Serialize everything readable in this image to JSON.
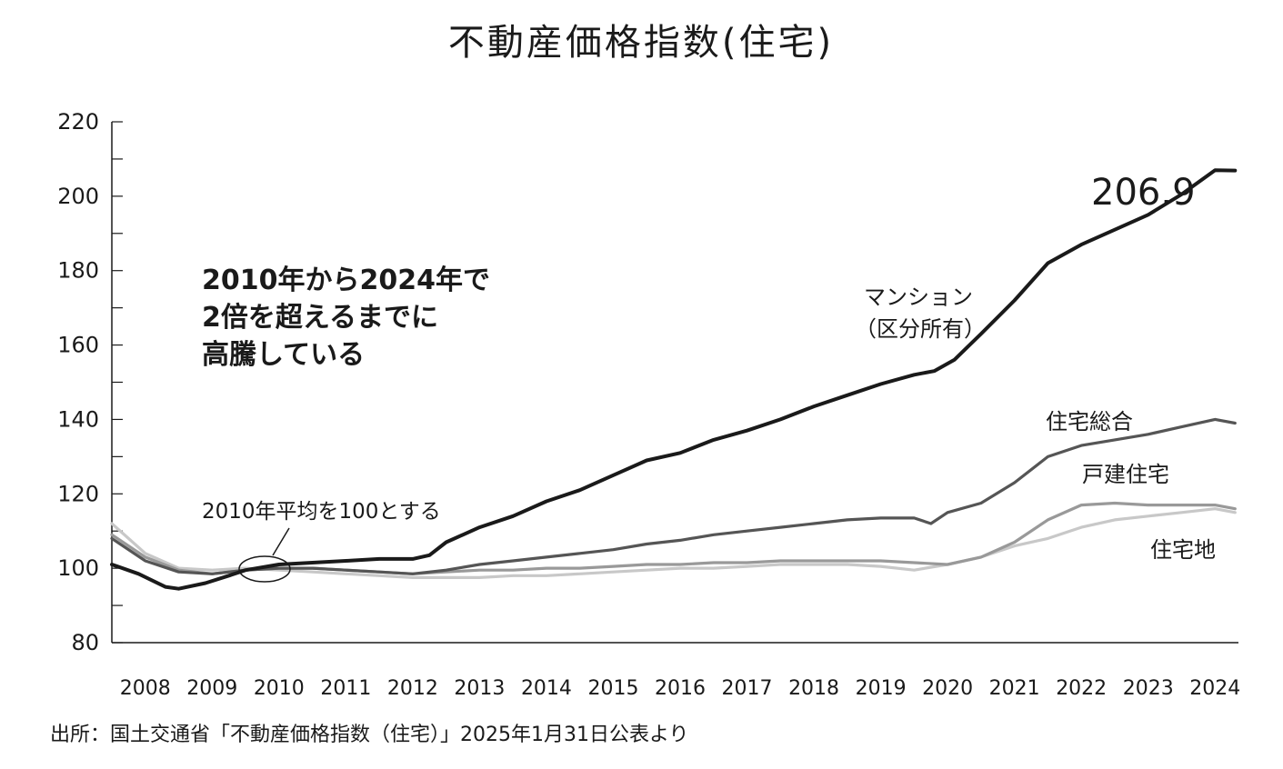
{
  "chart_data": {
    "type": "line",
    "title": "不動産価格指数(住宅)",
    "xlabel": "",
    "ylabel": "",
    "ylim": [
      80,
      220
    ],
    "yticks": [
      80,
      100,
      120,
      140,
      160,
      180,
      200,
      220
    ],
    "xlim": [
      2008.0,
      2024.85
    ],
    "xticks": [
      "2008",
      "2009",
      "2010",
      "2011",
      "2012",
      "2013",
      "2014",
      "2015",
      "2016",
      "2017",
      "2018",
      "2019",
      "2020",
      "2021",
      "2022",
      "2023",
      "2024"
    ],
    "series": [
      {
        "name": "マンション（区分所有）",
        "color": "#1a1a1a",
        "x": [
          2008.0,
          2008.4,
          2008.8,
          2009.0,
          2009.4,
          2009.75,
          2010.0,
          2010.5,
          2011.0,
          2011.5,
          2012.0,
          2012.5,
          2012.75,
          2013.0,
          2013.5,
          2014.0,
          2014.5,
          2015.0,
          2015.5,
          2016.0,
          2016.5,
          2017.0,
          2017.5,
          2018.0,
          2018.5,
          2019.0,
          2019.5,
          2020.0,
          2020.3,
          2020.6,
          2021.0,
          2021.5,
          2022.0,
          2022.5,
          2023.0,
          2023.5,
          2024.0,
          2024.5,
          2024.8
        ],
        "values": [
          101,
          98.5,
          95,
          94.5,
          96,
          98,
          99.5,
          101,
          101.5,
          102,
          102.5,
          102.5,
          103.5,
          107,
          111,
          114,
          118,
          121,
          125,
          129,
          131,
          134.5,
          137,
          140,
          143.5,
          146.5,
          149.5,
          152,
          153,
          156,
          163,
          172,
          182,
          187,
          191,
          195,
          200.5,
          207,
          206.9
        ]
      },
      {
        "name": "住宅総合",
        "color": "#555555",
        "x": [
          2008.0,
          2008.5,
          2009.0,
          2009.5,
          2010.0,
          2010.5,
          2011.0,
          2011.5,
          2012.0,
          2012.5,
          2013.0,
          2013.5,
          2014.0,
          2014.5,
          2015.0,
          2015.5,
          2016.0,
          2016.5,
          2017.0,
          2017.5,
          2018.0,
          2018.5,
          2019.0,
          2019.5,
          2020.0,
          2020.25,
          2020.5,
          2021.0,
          2021.5,
          2022.0,
          2022.5,
          2023.0,
          2023.5,
          2024.0,
          2024.5,
          2024.8
        ],
        "values": [
          108,
          102,
          99,
          98.5,
          99.5,
          100,
          100,
          99.5,
          99,
          98.5,
          99.5,
          101,
          102,
          103,
          104,
          105,
          106.5,
          107.5,
          109,
          110,
          111,
          112,
          113,
          113.5,
          113.5,
          112,
          115,
          117.5,
          123,
          130,
          133,
          134.5,
          136,
          138,
          140,
          139
        ]
      },
      {
        "name": "戸建住宅",
        "color": "#999999",
        "x": [
          2008.0,
          2008.5,
          2009.0,
          2009.5,
          2010.0,
          2010.5,
          2011.0,
          2011.5,
          2012.0,
          2012.5,
          2013.0,
          2013.5,
          2014.0,
          2014.5,
          2015.0,
          2015.5,
          2016.0,
          2016.5,
          2017.0,
          2017.5,
          2018.0,
          2018.5,
          2019.0,
          2019.5,
          2020.0,
          2020.5,
          2021.0,
          2021.5,
          2022.0,
          2022.5,
          2023.0,
          2023.5,
          2024.0,
          2024.5,
          2024.8
        ],
        "values": [
          109,
          103,
          99.5,
          98.5,
          99.5,
          100,
          100,
          99.5,
          99,
          98.5,
          99,
          99.5,
          99.5,
          100,
          100,
          100.5,
          101,
          101,
          101.5,
          101.5,
          102,
          102,
          102,
          102,
          101.5,
          101,
          103,
          107,
          113,
          117,
          117.5,
          117,
          117,
          117,
          116
        ]
      },
      {
        "name": "住宅地",
        "color": "#c8c8c8",
        "x": [
          2008.0,
          2008.5,
          2009.0,
          2009.5,
          2010.0,
          2010.5,
          2011.0,
          2011.5,
          2012.0,
          2012.5,
          2013.0,
          2013.5,
          2014.0,
          2014.5,
          2015.0,
          2015.5,
          2016.0,
          2016.5,
          2017.0,
          2017.5,
          2018.0,
          2018.5,
          2019.0,
          2019.5,
          2020.0,
          2020.5,
          2021.0,
          2021.5,
          2022.0,
          2022.5,
          2023.0,
          2023.5,
          2024.0,
          2024.5,
          2024.8
        ],
        "values": [
          112,
          104,
          100,
          99.5,
          100,
          99.5,
          99,
          98.5,
          98,
          97.5,
          97.5,
          97.5,
          98,
          98,
          98.5,
          99,
          99.5,
          100,
          100,
          100.5,
          101,
          101,
          101,
          100.5,
          99.5,
          101,
          103,
          106,
          108,
          111,
          113,
          114,
          115,
          116,
          115
        ]
      }
    ],
    "annotations": {
      "headline_lines": [
        "2010年から2024年で",
        "2倍を超えるまでに",
        "高騰している"
      ],
      "baseline_note": "2010年平均を100とする",
      "final_value": "206.9",
      "mansion_label_lines": [
        "マンション",
        "（区分所有）"
      ],
      "total_label": "住宅総合",
      "detached_label": "戸建住宅",
      "land_label": "住宅地"
    },
    "source": "出所：国土交通省「不動産価格指数（住宅）」2025年1月31日公表より"
  }
}
